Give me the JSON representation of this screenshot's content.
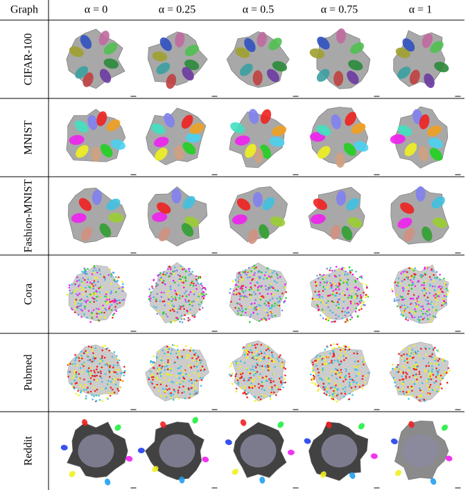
{
  "header": {
    "first": "Graph",
    "columns": [
      "α = 0",
      "α = 0.25",
      "α = 0.5",
      "α = 0.75",
      "α = 1"
    ]
  },
  "rows": [
    "CIFAR-100",
    "MNIST",
    "Fashion-MNIST",
    "Cora",
    "Pubmed",
    "Reddit"
  ]
}
